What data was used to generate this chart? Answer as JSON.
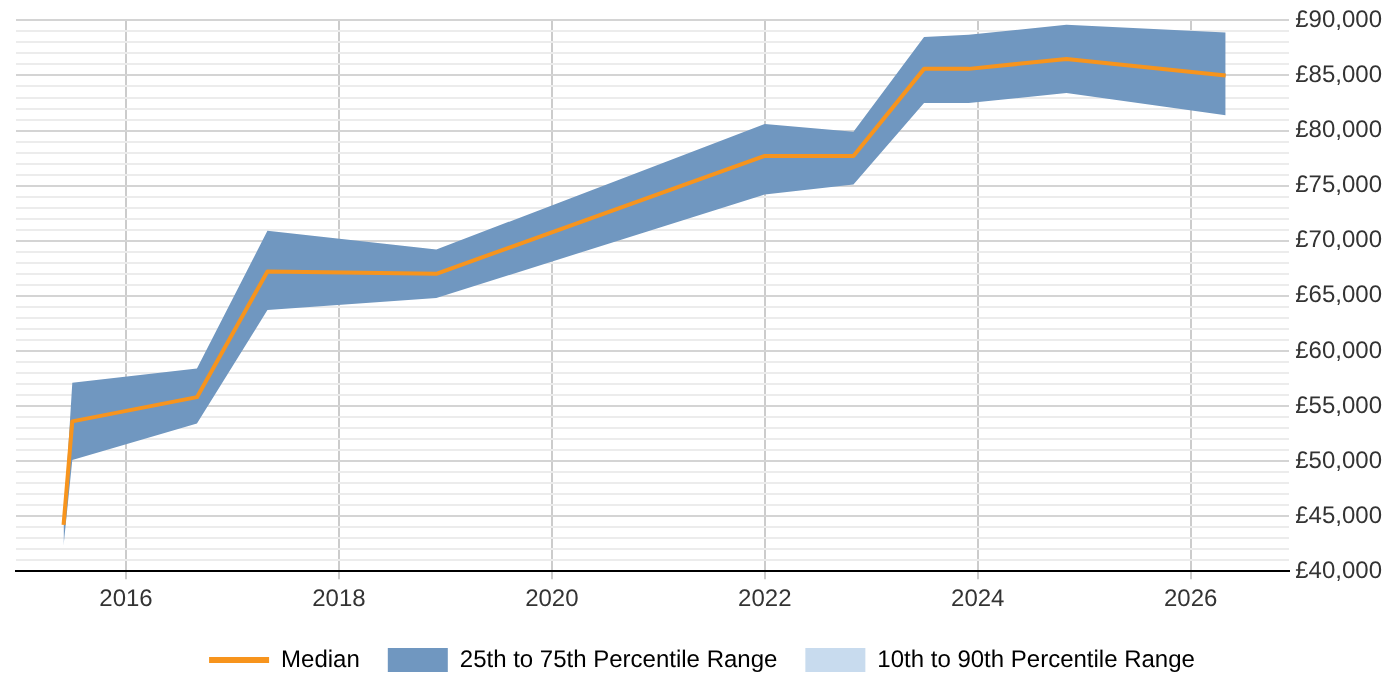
{
  "chart_data": {
    "type": "line",
    "x": [
      "2015-06",
      "2015-07",
      "2016-09",
      "2017-05",
      "2018-12",
      "2022-01",
      "2022-11",
      "2023-07",
      "2023-12",
      "2024-11",
      "2026-05"
    ],
    "series": [
      {
        "name": "Median",
        "type": "line",
        "color": "#f7941d",
        "values": [
          44200,
          53600,
          55800,
          67200,
          67000,
          77700,
          77700,
          85600,
          85600,
          86500,
          85000
        ],
        "lower": [
          42300,
          50100,
          53400,
          63700,
          64800,
          74200,
          75100,
          82500,
          82500,
          83400,
          81400
        ],
        "upper": [
          44200,
          57100,
          58400,
          70900,
          69200,
          80600,
          79900,
          88500,
          88700,
          89600,
          88900
        ]
      },
      {
        "name": "25th to 75th Percentile Range",
        "type": "area",
        "color": "#7097c0",
        "values": [
          null,
          null,
          null,
          null,
          null,
          null,
          null,
          null,
          null,
          null,
          null
        ]
      },
      {
        "name": "10th to 90th Percentile Range",
        "type": "area",
        "color": "#c8dbee",
        "values": [
          null,
          null,
          null,
          null,
          null,
          null,
          null,
          null,
          null,
          null,
          null
        ]
      }
    ],
    "xlim": [
      "2014-12-20",
      "2026-12-05"
    ],
    "xticks": [
      "2016",
      "2018",
      "2020",
      "2022",
      "2024",
      "2026"
    ],
    "ylim": [
      40000,
      90000
    ],
    "yticks": [
      {
        "value": 40000,
        "label": "£40,000"
      },
      {
        "value": 41000,
        "label": null
      },
      {
        "value": 42000,
        "label": null
      },
      {
        "value": 43000,
        "label": null
      },
      {
        "value": 44000,
        "label": null
      },
      {
        "value": 45000,
        "label": "£45,000"
      },
      {
        "value": 46000,
        "label": null
      },
      {
        "value": 47000,
        "label": null
      },
      {
        "value": 48000,
        "label": null
      },
      {
        "value": 49000,
        "label": null
      },
      {
        "value": 50000,
        "label": "£50,000"
      },
      {
        "value": 51000,
        "label": null
      },
      {
        "value": 52000,
        "label": null
      },
      {
        "value": 53000,
        "label": null
      },
      {
        "value": 54000,
        "label": null
      },
      {
        "value": 55000,
        "label": "£55,000"
      },
      {
        "value": 56000,
        "label": null
      },
      {
        "value": 57000,
        "label": null
      },
      {
        "value": 58000,
        "label": null
      },
      {
        "value": 59000,
        "label": null
      },
      {
        "value": 60000,
        "label": "£60,000"
      },
      {
        "value": 61000,
        "label": null
      },
      {
        "value": 62000,
        "label": null
      },
      {
        "value": 63000,
        "label": null
      },
      {
        "value": 64000,
        "label": null
      },
      {
        "value": 65000,
        "label": "£65,000"
      },
      {
        "value": 66000,
        "label": null
      },
      {
        "value": 67000,
        "label": null
      },
      {
        "value": 68000,
        "label": null
      },
      {
        "value": 69000,
        "label": null
      },
      {
        "value": 70000,
        "label": "£70,000"
      },
      {
        "value": 71000,
        "label": null
      },
      {
        "value": 72000,
        "label": null
      },
      {
        "value": 73000,
        "label": null
      },
      {
        "value": 74000,
        "label": null
      },
      {
        "value": 75000,
        "label": "£75,000"
      },
      {
        "value": 76000,
        "label": null
      },
      {
        "value": 77000,
        "label": null
      },
      {
        "value": 78000,
        "label": null
      },
      {
        "value": 79000,
        "label": null
      },
      {
        "value": 80000,
        "label": "£80,000"
      },
      {
        "value": 81000,
        "label": null
      },
      {
        "value": 82000,
        "label": null
      },
      {
        "value": 83000,
        "label": null
      },
      {
        "value": 84000,
        "label": null
      },
      {
        "value": 85000,
        "label": "£85,000"
      },
      {
        "value": 86000,
        "label": null
      },
      {
        "value": 87000,
        "label": null
      },
      {
        "value": 88000,
        "label": null
      },
      {
        "value": 89000,
        "label": null
      },
      {
        "value": 90000,
        "label": "£90,000"
      }
    ],
    "grid": true,
    "legend": "bottom",
    "marker": "none"
  }
}
